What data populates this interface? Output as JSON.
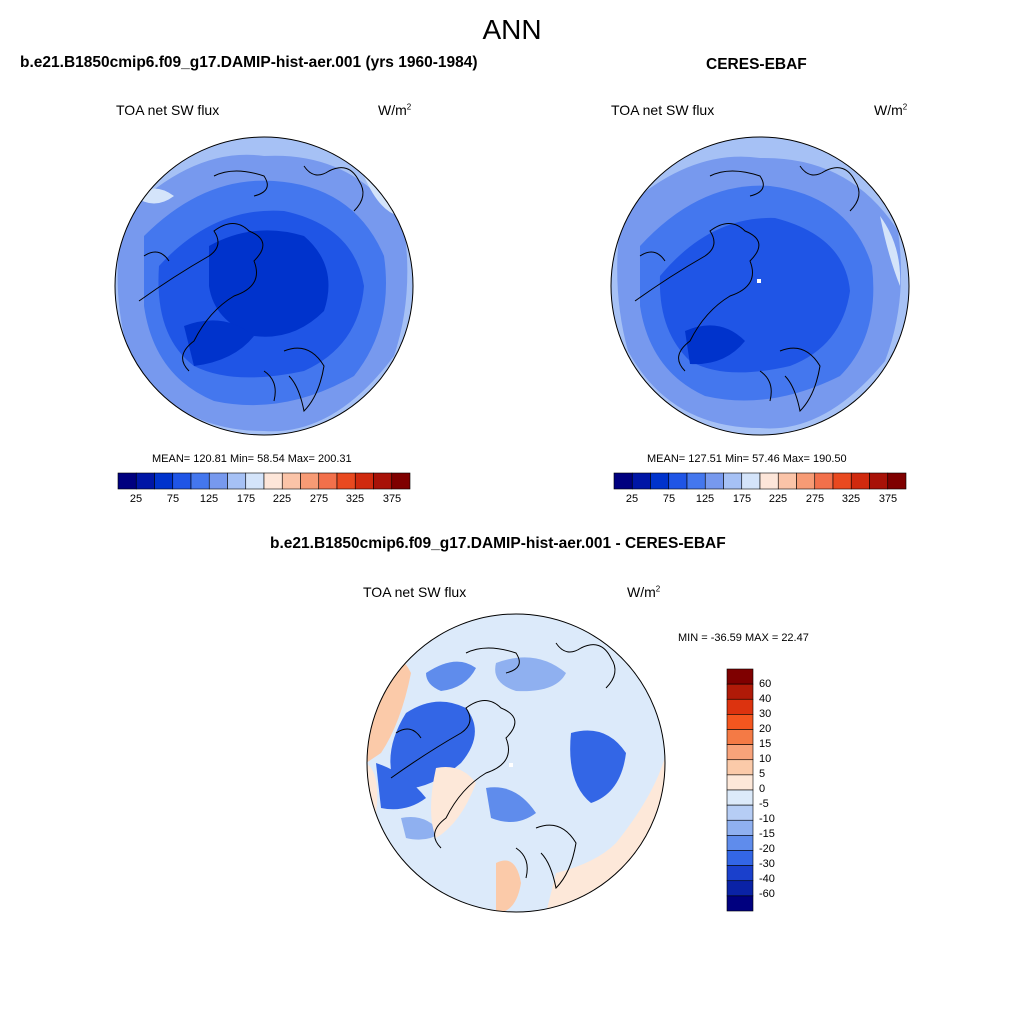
{
  "title": "ANN",
  "panels": [
    {
      "id": "model",
      "title": "b.e21.B1850cmip6.f09_g17.DAMIP-hist-aer.001 (yrs 1960-1984)",
      "variable": "TOA net SW flux",
      "units_base": "W/m",
      "units_exp": "2",
      "stats": "MEAN= 120.81  Min=  58.54  Max= 200.31",
      "colorbar_ticks": [
        "25",
        "75",
        "125",
        "175",
        "225",
        "275",
        "325",
        "375"
      ]
    },
    {
      "id": "obs",
      "title": "CERES-EBAF",
      "variable": "TOA net SW flux",
      "units_base": "W/m",
      "units_exp": "2",
      "stats": "MEAN= 127.51  Min=  57.46  Max= 190.50",
      "colorbar_ticks": [
        "25",
        "75",
        "125",
        "175",
        "225",
        "275",
        "325",
        "375"
      ]
    },
    {
      "id": "diff",
      "title": "b.e21.B1850cmip6.f09_g17.DAMIP-hist-aer.001 - CERES-EBAF",
      "variable": "TOA net SW flux",
      "units_base": "W/m",
      "units_exp": "2",
      "stats": "MIN = -36.59 MAX =  22.47",
      "colorbar_ticks": [
        "60",
        "40",
        "30",
        "20",
        "15",
        "10",
        "5",
        "0",
        "-5",
        "-10",
        "-15",
        "-20",
        "-30",
        "-40",
        "-60"
      ]
    }
  ],
  "colors": {
    "abs_scale": [
      "#00007f",
      "#0016a6",
      "#0033cc",
      "#1f55e6",
      "#4477ee",
      "#7799ee",
      "#a6c1f5",
      "#d4e4fa",
      "#fde6d9",
      "#fbc4a8",
      "#f79b75",
      "#f2704b",
      "#e9491f",
      "#d02a0e",
      "#a81208",
      "#7f0000"
    ],
    "diff_scale": [
      "#7f0000",
      "#b01a08",
      "#dc330f",
      "#f4561f",
      "#f47a45",
      "#f8a37a",
      "#fbcaa9",
      "#fde8d9",
      "#dceafa",
      "#b6cdf5",
      "#8fb0f0",
      "#5f8cec",
      "#3366e6",
      "#1a40cc",
      "#0a22a6",
      "#00007f"
    ]
  }
}
